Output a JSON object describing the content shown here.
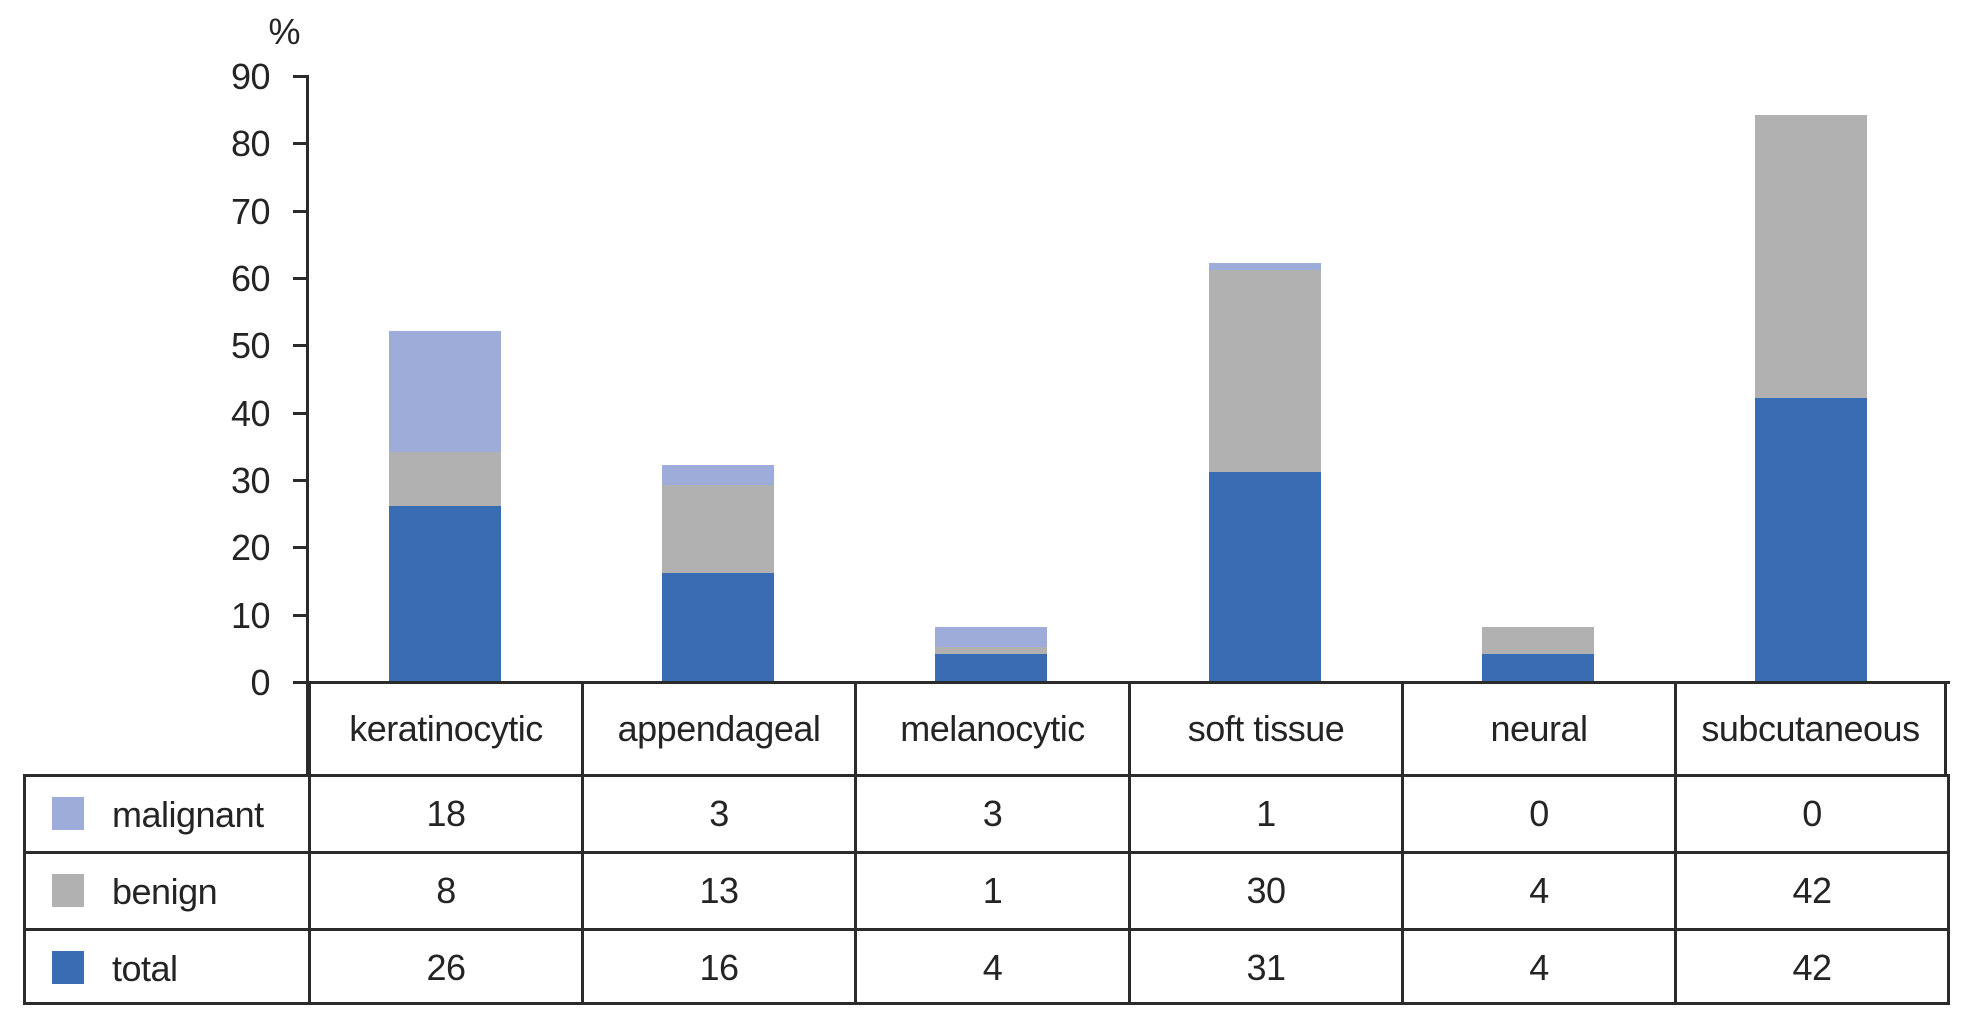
{
  "figure": {
    "background": "#ffffff"
  },
  "chart_data": {
    "type": "bar",
    "stacked": true,
    "title": "",
    "ylabel": "%",
    "xlabel": "",
    "ylim": [
      0,
      90
    ],
    "yticks": [
      0,
      10,
      20,
      30,
      40,
      50,
      60,
      70,
      80,
      90
    ],
    "grid": false,
    "legend_position": "table-rows-left",
    "categories": [
      "keratinocytic",
      "appendageal",
      "melanocytic",
      "soft tissue",
      "neural",
      "subcutaneous"
    ],
    "series": [
      {
        "name": "malignant",
        "color": "#9dacd8",
        "values": [
          18,
          3,
          3,
          1,
          0,
          0
        ]
      },
      {
        "name": "benign",
        "color": "#b1b1b1",
        "values": [
          8,
          13,
          1,
          30,
          4,
          42
        ]
      },
      {
        "name": "total",
        "color": "#3a6cb4",
        "values": [
          26,
          16,
          4,
          31,
          4,
          42
        ]
      }
    ],
    "stack_bottom_to_top": [
      "total",
      "benign",
      "malignant"
    ],
    "stack_totals": [
      52,
      32,
      8,
      62,
      8,
      84
    ],
    "axis_color": "#2b2b2b",
    "text_color": "#242424"
  }
}
